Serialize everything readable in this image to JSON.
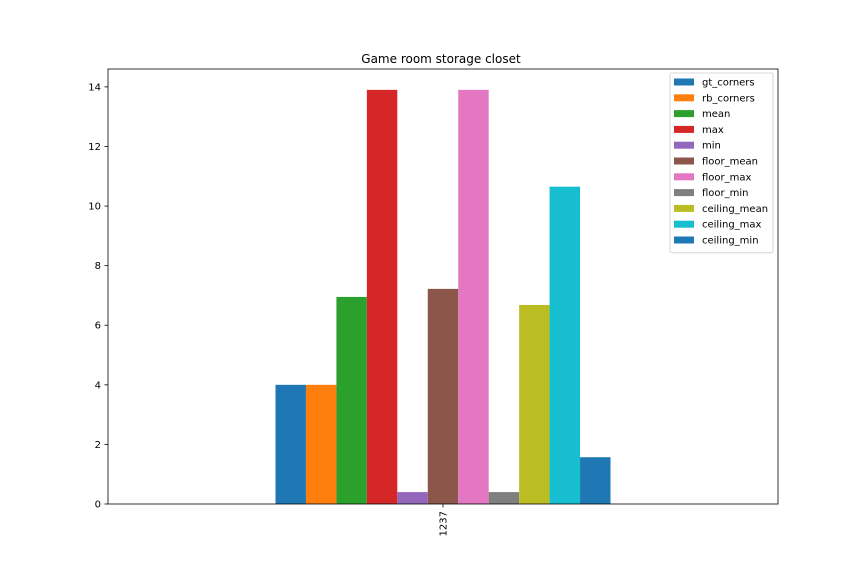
{
  "chart_data": {
    "type": "bar",
    "title": "Game room storage closet",
    "xlabel": "",
    "ylabel": "",
    "categories": [
      "1237"
    ],
    "ylim": [
      0,
      14.6
    ],
    "yticks": [
      0,
      2,
      4,
      6,
      8,
      10,
      12,
      14
    ],
    "grid": false,
    "legend_position": "top-right",
    "series": [
      {
        "name": "gt_corners",
        "values": [
          4.0
        ],
        "color": "#1f77b4"
      },
      {
        "name": "rb_corners",
        "values": [
          4.0
        ],
        "color": "#ff7f0e"
      },
      {
        "name": "mean",
        "values": [
          6.95
        ],
        "color": "#2ca02c"
      },
      {
        "name": "max",
        "values": [
          13.9
        ],
        "color": "#d62728"
      },
      {
        "name": "min",
        "values": [
          0.4
        ],
        "color": "#9467bd"
      },
      {
        "name": "floor_mean",
        "values": [
          7.22
        ],
        "color": "#8c564b"
      },
      {
        "name": "floor_max",
        "values": [
          13.9
        ],
        "color": "#e377c2"
      },
      {
        "name": "floor_min",
        "values": [
          0.4
        ],
        "color": "#7f7f7f"
      },
      {
        "name": "ceiling_mean",
        "values": [
          6.68
        ],
        "color": "#bcbd22"
      },
      {
        "name": "ceiling_max",
        "values": [
          10.65
        ],
        "color": "#17becf"
      },
      {
        "name": "ceiling_min",
        "values": [
          1.57
        ],
        "color": "#1f77b4"
      }
    ]
  }
}
